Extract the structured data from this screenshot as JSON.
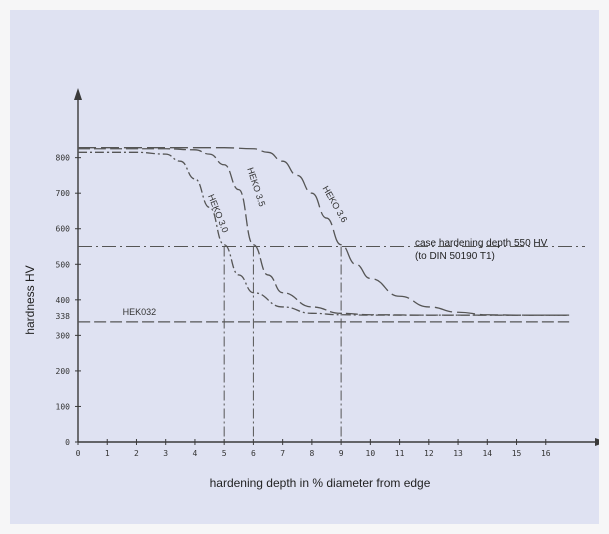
{
  "chart_data": {
    "type": "line",
    "xlabel": "hardening depth in % diameter from edge",
    "ylabel": "hardness HV",
    "xlim": [
      0,
      17
    ],
    "ylim": [
      0,
      920
    ],
    "x_ticks": [
      0,
      1,
      2,
      3,
      4,
      5,
      6,
      7,
      8,
      9,
      10,
      11,
      12,
      13,
      14,
      15,
      16
    ],
    "y_ticks": [
      0,
      100,
      200,
      300,
      400,
      500,
      600,
      700,
      800
    ],
    "y_tick_338": "338",
    "grid": false,
    "series": [
      {
        "name": "HEKO 3.0",
        "style": "dash-dot",
        "points": [
          [
            0,
            815
          ],
          [
            1,
            815
          ],
          [
            2,
            815
          ],
          [
            3,
            810
          ],
          [
            3.5,
            790
          ],
          [
            4,
            740
          ],
          [
            4.5,
            660
          ],
          [
            5,
            555
          ],
          [
            5.5,
            470
          ],
          [
            6,
            420
          ],
          [
            7,
            380
          ],
          [
            8,
            362
          ],
          [
            9,
            358
          ],
          [
            10,
            357
          ],
          [
            12,
            357
          ],
          [
            14,
            357
          ],
          [
            16.8,
            357
          ]
        ]
      },
      {
        "name": "HEKO 3.5",
        "style": "dash",
        "points": [
          [
            0,
            825
          ],
          [
            1,
            825
          ],
          [
            2,
            825
          ],
          [
            3,
            825
          ],
          [
            4,
            822
          ],
          [
            4.5,
            810
          ],
          [
            5,
            780
          ],
          [
            5.5,
            710
          ],
          [
            6,
            555
          ],
          [
            6.5,
            470
          ],
          [
            7,
            420
          ],
          [
            8,
            380
          ],
          [
            9,
            362
          ],
          [
            10,
            358
          ],
          [
            12,
            357
          ],
          [
            14,
            357
          ],
          [
            16.8,
            357
          ]
        ]
      },
      {
        "name": "HEKO 3.6",
        "style": "long-dash",
        "points": [
          [
            0,
            828
          ],
          [
            2,
            828
          ],
          [
            4,
            828
          ],
          [
            5,
            828
          ],
          [
            6,
            825
          ],
          [
            6.5,
            815
          ],
          [
            7,
            790
          ],
          [
            7.5,
            750
          ],
          [
            8,
            700
          ],
          [
            8.5,
            630
          ],
          [
            9,
            555
          ],
          [
            9.5,
            500
          ],
          [
            10,
            460
          ],
          [
            11,
            410
          ],
          [
            12,
            380
          ],
          [
            13,
            365
          ],
          [
            14,
            358
          ],
          [
            15,
            357
          ],
          [
            16.8,
            357
          ]
        ]
      },
      {
        "name": "HEK032",
        "style": "dash",
        "points": [
          [
            0,
            338
          ],
          [
            16.8,
            338
          ]
        ]
      }
    ],
    "reference_lines": [
      {
        "axis": "y",
        "value": 550,
        "label": "case hardening depth 550 HV",
        "label2": "(to DIN 50190 T1)"
      }
    ],
    "drop_lines_x": [
      5,
      6,
      9
    ]
  }
}
